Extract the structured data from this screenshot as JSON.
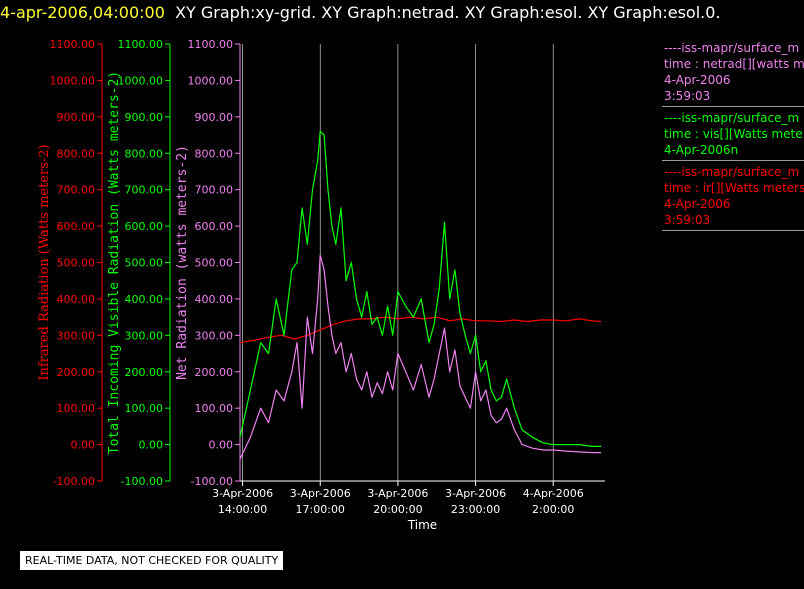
{
  "header": {
    "timestamp": "4-apr-2006,04:00:00",
    "graphs": "XY Graph:xy-grid.  XY Graph:netrad.  XY Graph:esol.  XY Graph:esol.0."
  },
  "notice": "REAL-TIME DATA, NOT CHECKED FOR QUALITY",
  "colors": {
    "ir": "#ff0000",
    "vis": "#00ff00",
    "net": "#ee82ee",
    "grid": "#cccccc",
    "axis": "#ffffff"
  },
  "legend": [
    {
      "color": "#ee82ee",
      "lines": [
        "----iss-mapr/surface_m",
        "time : netrad[][watts me",
        "4-Apr-2006",
        "3:59:03"
      ]
    },
    {
      "color": "#00ff00",
      "lines": [
        "----iss-mapr/surface_m",
        "time : vis[][Watts mete",
        "4-Apr-2006n"
      ]
    },
    {
      "color": "#ff0000",
      "lines": [
        "----iss-mapr/surface_m",
        "time : ir[][Watts meters",
        "4-Apr-2006",
        "3:59:03"
      ]
    }
  ],
  "chart_data": {
    "type": "line",
    "xlabel": "Time",
    "x_ticks": [
      {
        "hours": 14,
        "label1": "3-Apr-2006",
        "label2": "14:00:00"
      },
      {
        "hours": 17,
        "label1": "3-Apr-2006",
        "label2": "17:00:00"
      },
      {
        "hours": 20,
        "label1": "3-Apr-2006",
        "label2": "20:00:00"
      },
      {
        "hours": 23,
        "label1": "3-Apr-2006",
        "label2": "23:00:00"
      },
      {
        "hours": 26,
        "label1": "4-Apr-2006",
        "label2": "2:00:00"
      }
    ],
    "xlim_hours": [
      13.9,
      28.0
    ],
    "ylim": [
      -100,
      1100
    ],
    "y_ticks": [
      -100,
      0,
      100,
      200,
      300,
      400,
      500,
      600,
      700,
      800,
      900,
      1000,
      1100
    ],
    "y_tick_labels": [
      "-100.00",
      "0.00",
      "100.00",
      "200.00",
      "300.00",
      "400.00",
      "500.00",
      "600.00",
      "700.00",
      "800.00",
      "900.00",
      "1000.00",
      "1100.00"
    ],
    "axes": [
      {
        "key": "ir",
        "label": "Infrared Radiation (Watts meters-2)"
      },
      {
        "key": "vis",
        "label": "Total Incoming Visible Radiation (Watts meters-2)"
      },
      {
        "key": "net",
        "label": "Net Radiation (watts meters-2)"
      }
    ],
    "series": [
      {
        "key": "ir",
        "x": [
          13.9,
          14.5,
          15.0,
          15.5,
          16.0,
          16.5,
          17.0,
          17.5,
          18.0,
          18.5,
          19.0,
          19.5,
          20.0,
          20.5,
          21.0,
          21.5,
          22.0,
          22.5,
          23.0,
          23.5,
          24.0,
          24.5,
          25.0,
          25.5,
          26.0,
          26.5,
          27.0,
          27.5,
          27.85
        ],
        "y": [
          280,
          287,
          295,
          300,
          290,
          300,
          315,
          330,
          340,
          345,
          345,
          350,
          345,
          350,
          345,
          350,
          340,
          345,
          340,
          340,
          338,
          342,
          338,
          342,
          342,
          340,
          345,
          340,
          338
        ]
      },
      {
        "key": "vis",
        "x": [
          13.9,
          14.3,
          14.7,
          15.0,
          15.3,
          15.6,
          15.9,
          16.1,
          16.3,
          16.5,
          16.7,
          16.9,
          17.0,
          17.15,
          17.3,
          17.45,
          17.6,
          17.8,
          18.0,
          18.2,
          18.4,
          18.6,
          18.8,
          19.0,
          19.2,
          19.4,
          19.6,
          19.8,
          20.0,
          20.3,
          20.6,
          20.9,
          21.2,
          21.4,
          21.6,
          21.8,
          22.0,
          22.2,
          22.4,
          22.6,
          22.8,
          23.0,
          23.2,
          23.4,
          23.6,
          23.8,
          24.0,
          24.2,
          24.5,
          24.8,
          25.2,
          25.6,
          26.0,
          26.5,
          27.0,
          27.5,
          27.85
        ],
        "y": [
          20,
          150,
          280,
          250,
          400,
          300,
          480,
          500,
          650,
          550,
          700,
          780,
          860,
          850,
          700,
          600,
          550,
          650,
          450,
          500,
          400,
          350,
          420,
          330,
          350,
          300,
          380,
          300,
          420,
          380,
          350,
          400,
          280,
          330,
          430,
          610,
          400,
          480,
          360,
          300,
          250,
          300,
          200,
          230,
          150,
          120,
          130,
          180,
          100,
          40,
          20,
          5,
          0,
          0,
          0,
          -5,
          -5
        ]
      },
      {
        "key": "net",
        "x": [
          13.9,
          14.3,
          14.7,
          15.0,
          15.3,
          15.6,
          15.9,
          16.1,
          16.3,
          16.5,
          16.7,
          16.9,
          17.0,
          17.15,
          17.3,
          17.45,
          17.6,
          17.8,
          18.0,
          18.2,
          18.4,
          18.6,
          18.8,
          19.0,
          19.2,
          19.4,
          19.6,
          19.8,
          20.0,
          20.3,
          20.6,
          20.9,
          21.2,
          21.4,
          21.6,
          21.8,
          22.0,
          22.2,
          22.4,
          22.6,
          22.8,
          23.0,
          23.2,
          23.4,
          23.6,
          23.8,
          24.0,
          24.2,
          24.5,
          24.8,
          25.2,
          25.6,
          26.0,
          26.5,
          27.0,
          27.5,
          27.85
        ],
        "y": [
          -40,
          20,
          100,
          60,
          150,
          120,
          200,
          280,
          100,
          350,
          250,
          400,
          520,
          480,
          380,
          300,
          250,
          280,
          200,
          250,
          180,
          150,
          200,
          130,
          170,
          140,
          200,
          150,
          250,
          200,
          150,
          220,
          130,
          180,
          250,
          320,
          200,
          260,
          160,
          130,
          100,
          200,
          120,
          150,
          80,
          60,
          70,
          100,
          40,
          0,
          -10,
          -15,
          -15,
          -18,
          -20,
          -22,
          -22
        ]
      }
    ]
  }
}
